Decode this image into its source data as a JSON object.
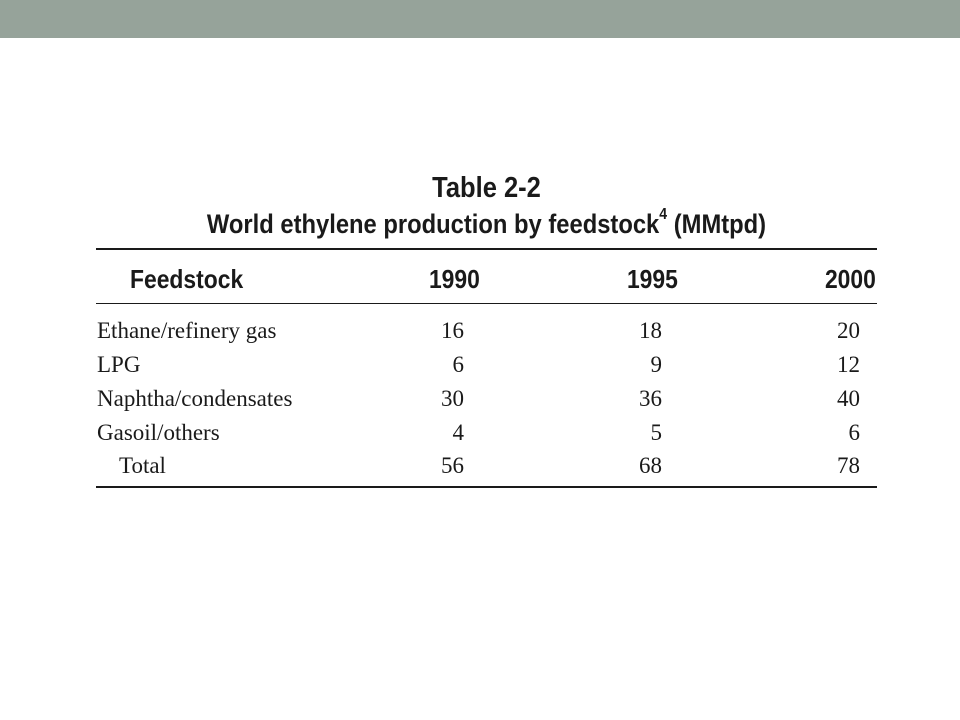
{
  "table": {
    "title_line1": "Table 2-2",
    "title_main": "World ethylene production by feedstock",
    "title_sup": "4",
    "title_unit": "(MMtpd)",
    "headers": [
      "Feedstock",
      "1990",
      "1995",
      "2000"
    ],
    "rows": [
      {
        "label": "Ethane/refinery gas",
        "v1990": "16",
        "v1995": "18",
        "v2000": "20"
      },
      {
        "label": "LPG",
        "v1990": "6",
        "v1995": "9",
        "v2000": "12"
      },
      {
        "label": "Naphtha/condensates",
        "v1990": "30",
        "v1995": "36",
        "v2000": "40"
      },
      {
        "label": "Gasoil/others",
        "v1990": "4",
        "v1995": "5",
        "v2000": "6"
      },
      {
        "label": "Total",
        "v1990": "56",
        "v1995": "68",
        "v2000": "78"
      }
    ]
  },
  "colors": {
    "top_band": "#96a39a",
    "text": "#1a1a1a",
    "background": "#ffffff"
  }
}
